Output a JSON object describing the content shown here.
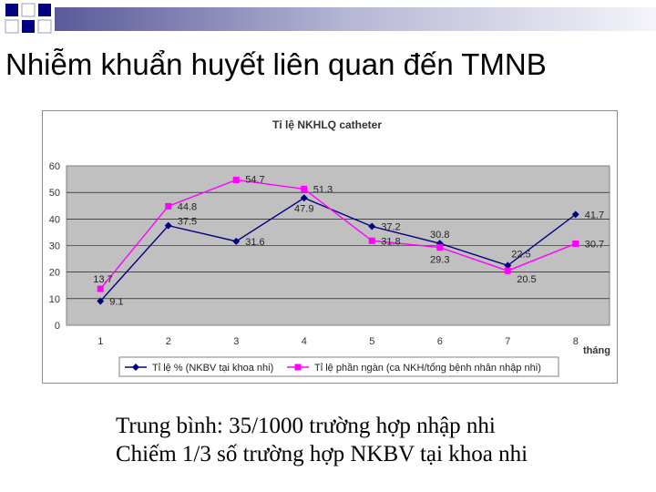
{
  "slide": {
    "title": "Nhiễm khuẩn huyết liên quan đến TMNB",
    "notes": [
      "Trung bình: 35/1000 trường hợp nhập nhi",
      "Chiếm 1/3 số trường hợp NKBV tại khoa nhi"
    ]
  },
  "colors": {
    "plot_background": "#c0c0c0",
    "series1": "#000080",
    "series2": "#ff00ff",
    "decor_block": "#000080"
  },
  "chart_data": {
    "type": "line",
    "title": "Tỉ lệ NKHLQ catheter",
    "xlabel": "tháng",
    "ylabel": "",
    "categories": [
      "1",
      "2",
      "3",
      "4",
      "5",
      "6",
      "7",
      "8"
    ],
    "ylim": [
      0,
      60
    ],
    "yticks": [
      "0",
      "10",
      "20",
      "30",
      "40",
      "50",
      "60"
    ],
    "grid": true,
    "legend": "bottom",
    "series": [
      {
        "name": "Tỉ lệ % (NKBV tại khoa nhi)",
        "marker": "diamond",
        "values": [
          9.1,
          37.5,
          31.6,
          47.9,
          37.2,
          30.8,
          22.5,
          41.7
        ],
        "labels": [
          "9.1",
          "37.5",
          "31.6",
          "47.9",
          "37.2",
          "30.8",
          "22.5",
          "41.7"
        ]
      },
      {
        "name": "Tỉ lệ phần ngàn (ca NKH/tổng bệnh nhân nhập nhi)",
        "marker": "square",
        "values": [
          13.7,
          44.8,
          54.7,
          51.3,
          31.8,
          29.3,
          20.5,
          30.7
        ],
        "labels": [
          "13.7",
          "44.8",
          "54.7",
          "51.3",
          "31.8",
          "29.3",
          "20.5",
          "30.7"
        ]
      }
    ]
  }
}
